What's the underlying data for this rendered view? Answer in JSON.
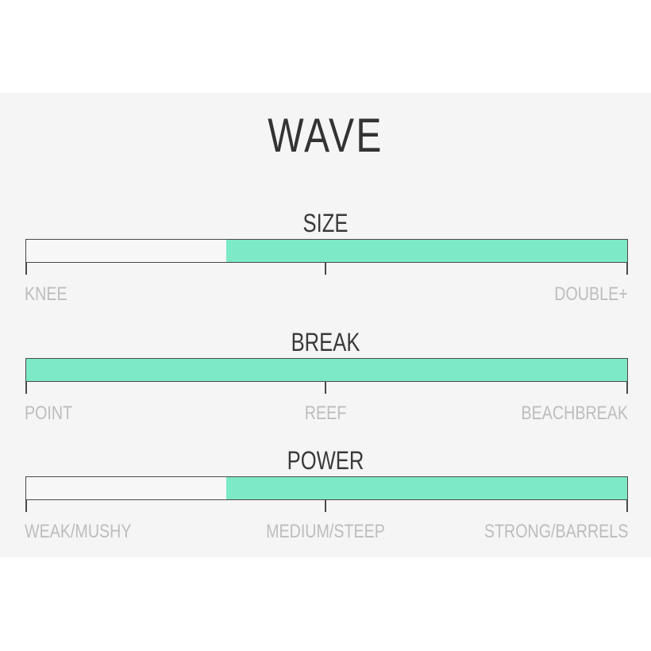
{
  "title": "WAVE",
  "fill_color": "#7de9c6",
  "scales": [
    {
      "label": "SIZE",
      "fill_start": 0.333,
      "fill_end": 1.0,
      "ticks": {
        "left": "KNEE",
        "center": "",
        "right": "DOUBLE+"
      }
    },
    {
      "label": "BREAK",
      "fill_start": 0.0,
      "fill_end": 1.0,
      "ticks": {
        "left": "POINT",
        "center": "REEF",
        "right": "BEACHBREAK"
      }
    },
    {
      "label": "POWER",
      "fill_start": 0.333,
      "fill_end": 1.0,
      "ticks": {
        "left": "WEAK/MUSHY",
        "center": "MEDIUM/STEEP",
        "right": "STRONG/BARRELS"
      }
    }
  ]
}
